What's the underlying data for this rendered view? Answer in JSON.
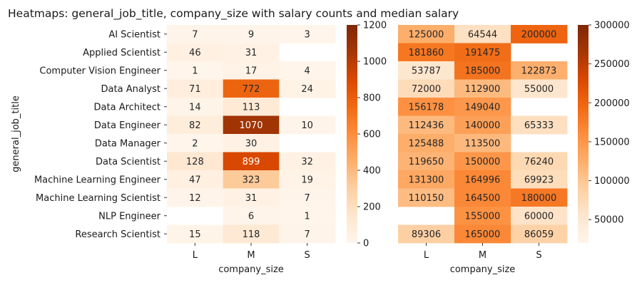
{
  "figure_title": "Heatmaps: general_job_title, company_size with salary counts and median salary",
  "chart_data": [
    {
      "type": "heatmap",
      "rows": [
        "AI Scientist",
        "Applied Scientist",
        "Computer Vision Engineer",
        "Data Analyst",
        "Data Architect",
        "Data Engineer",
        "Data Manager",
        "Data Scientist",
        "Machine Learning Engineer",
        "Machine Learning Scientist",
        "NLP Engineer",
        "Research Scientist"
      ],
      "columns": [
        "L",
        "M",
        "S"
      ],
      "values": [
        [
          7,
          9,
          3
        ],
        [
          46,
          31,
          null
        ],
        [
          1,
          17,
          4
        ],
        [
          71,
          772,
          24
        ],
        [
          14,
          113,
          null
        ],
        [
          82,
          1070,
          10
        ],
        [
          2,
          30,
          null
        ],
        [
          128,
          899,
          32
        ],
        [
          47,
          323,
          19
        ],
        [
          12,
          31,
          7
        ],
        [
          null,
          6,
          1
        ],
        [
          15,
          118,
          7
        ]
      ],
      "xlabel": "company_size",
      "ylabel": "general_job_title",
      "colormap": "Oranges",
      "vmin": 0,
      "vmax": 1200,
      "colorbar_ticks": [
        0,
        200,
        400,
        600,
        800,
        1000,
        1200
      ]
    },
    {
      "type": "heatmap",
      "rows": [
        "AI Scientist",
        "Applied Scientist",
        "Computer Vision Engineer",
        "Data Analyst",
        "Data Architect",
        "Data Engineer",
        "Data Manager",
        "Data Scientist",
        "Machine Learning Engineer",
        "Machine Learning Scientist",
        "NLP Engineer",
        "Research Scientist"
      ],
      "columns": [
        "L",
        "M",
        "S"
      ],
      "values": [
        [
          125000,
          64544,
          200000
        ],
        [
          181860,
          191475,
          null
        ],
        [
          53787,
          185000,
          122873
        ],
        [
          72000,
          112900,
          55000
        ],
        [
          156178,
          149040,
          null
        ],
        [
          112436,
          140000,
          65333
        ],
        [
          125488,
          113500,
          null
        ],
        [
          119650,
          150000,
          76240
        ],
        [
          131300,
          164996,
          69923
        ],
        [
          110150,
          164500,
          180000
        ],
        [
          null,
          155000,
          60000
        ],
        [
          89306,
          165000,
          86059
        ]
      ],
      "xlabel": "company_size",
      "ylabel": "",
      "colormap": "Oranges",
      "vmin": 20000,
      "vmax": 300000,
      "colorbar_ticks": [
        50000,
        100000,
        150000,
        200000,
        250000,
        300000
      ]
    }
  ]
}
